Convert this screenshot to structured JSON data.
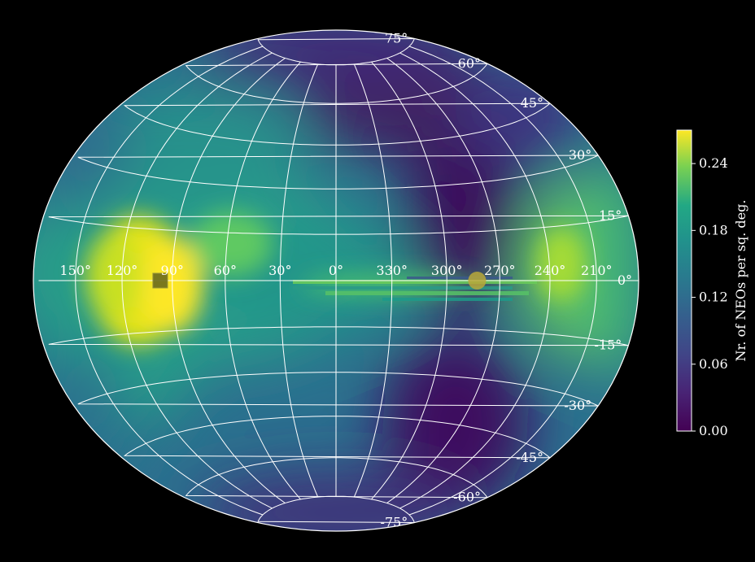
{
  "chart_data": {
    "type": "heatmap",
    "projection": "hammer-aitoff",
    "title": "",
    "colormap": "viridis",
    "colorbar": {
      "label": "Nr. of NEOs per sq. deg.",
      "min": 0.0,
      "max": 0.27,
      "ticks": [
        0.0,
        0.06,
        0.12,
        0.18,
        0.24
      ],
      "tick_labels": [
        "0.00",
        "0.06",
        "0.12",
        "0.18",
        "0.24"
      ],
      "placement": "right"
    },
    "longitude_ticks": [
      150,
      120,
      90,
      60,
      30,
      0,
      330,
      300,
      270,
      240,
      210
    ],
    "longitude_tick_labels": [
      "150°",
      "120°",
      "90°",
      "60°",
      "30°",
      "0°",
      "330°",
      "300°",
      "270°",
      "240°",
      "210°"
    ],
    "latitude_ticks": [
      75,
      60,
      45,
      30,
      15,
      0,
      -15,
      -30,
      -45,
      -60,
      -75
    ],
    "latitude_tick_labels": [
      "75°",
      "60°",
      "45°",
      "30°",
      "15°",
      "0°",
      "-15°",
      "-30°",
      "-45°",
      "-60°",
      "-75°"
    ],
    "grid": true,
    "density_peaks": [
      {
        "lon": 100,
        "lat": -2,
        "value": 0.26
      },
      {
        "lon": 130,
        "lat": 0,
        "value": 0.24
      },
      {
        "lon": 220,
        "lat": 0,
        "value": 0.22
      },
      {
        "lon": 70,
        "lat": 15,
        "value": 0.16
      },
      {
        "lon": 40,
        "lat": 5,
        "value": 0.15
      }
    ],
    "density_low": [
      {
        "lon": 290,
        "lat": 20,
        "value": 0.01
      },
      {
        "lon": 290,
        "lat": -45,
        "value": 0.01
      }
    ],
    "markers": [
      {
        "name": "square",
        "lon": 97,
        "lat": 0,
        "color": "#6b6b1e"
      },
      {
        "name": "circle",
        "lon": 283,
        "lat": 0,
        "color": "#b8a83a"
      }
    ]
  }
}
